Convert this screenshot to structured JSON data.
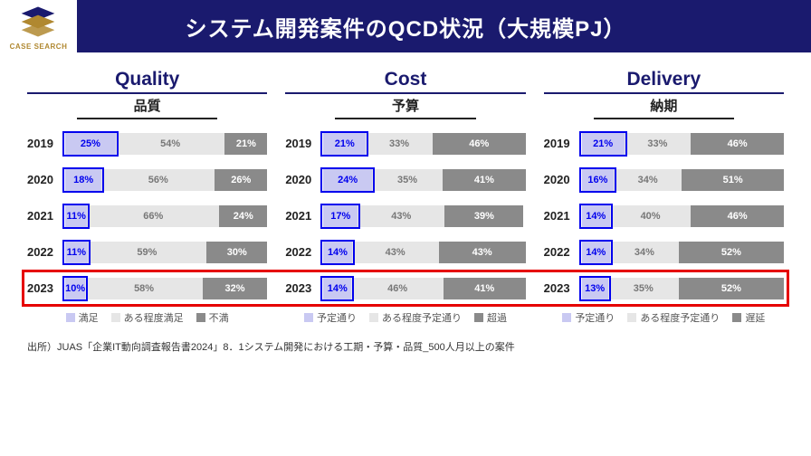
{
  "title": "システム開発案件のQCD状況（大規模PJ）",
  "logo_text": "CASE SEARCH",
  "colors": {
    "header_bg": "#1a1a6e",
    "accent": "#1a1a6e",
    "seg1_fill": "#c9c9f2",
    "seg2_fill": "#e6e6e6",
    "seg3_fill": "#8a8a8a",
    "seg1_text": "#0000ee",
    "seg2_text": "#777777",
    "seg3_text": "#ffffff",
    "highlight_border": "#e60000"
  },
  "years": [
    "2019",
    "2020",
    "2021",
    "2022",
    "2023"
  ],
  "columns": [
    {
      "title": "Quality",
      "subtitle": "品質",
      "legend": [
        "満足",
        "ある程度満足",
        "不満"
      ],
      "rows": [
        {
          "v": [
            25,
            54,
            21
          ]
        },
        {
          "v": [
            18,
            56,
            26
          ]
        },
        {
          "v": [
            11,
            66,
            24
          ]
        },
        {
          "v": [
            11,
            59,
            30
          ]
        },
        {
          "v": [
            10,
            58,
            32
          ]
        }
      ]
    },
    {
      "title": "Cost",
      "subtitle": "予算",
      "legend": [
        "予定通り",
        "ある程度予定通り",
        "超過"
      ],
      "rows": [
        {
          "v": [
            21,
            33,
            46
          ]
        },
        {
          "v": [
            24,
            35,
            41
          ]
        },
        {
          "v": [
            17,
            43,
            39
          ]
        },
        {
          "v": [
            14,
            43,
            43
          ]
        },
        {
          "v": [
            14,
            46,
            41
          ]
        }
      ]
    },
    {
      "title": "Delivery",
      "subtitle": "納期",
      "legend": [
        "予定通り",
        "ある程度予定通り",
        "遅延"
      ],
      "rows": [
        {
          "v": [
            21,
            33,
            46
          ]
        },
        {
          "v": [
            16,
            34,
            51
          ]
        },
        {
          "v": [
            14,
            40,
            46
          ]
        },
        {
          "v": [
            14,
            34,
            52
          ]
        },
        {
          "v": [
            13,
            35,
            52
          ]
        }
      ]
    }
  ],
  "highlight_row_index": 4,
  "source": "出所）JUAS「企業IT動向調査報告書2024」8．1システム開発における工期・予算・品質_500人月以上の案件"
}
